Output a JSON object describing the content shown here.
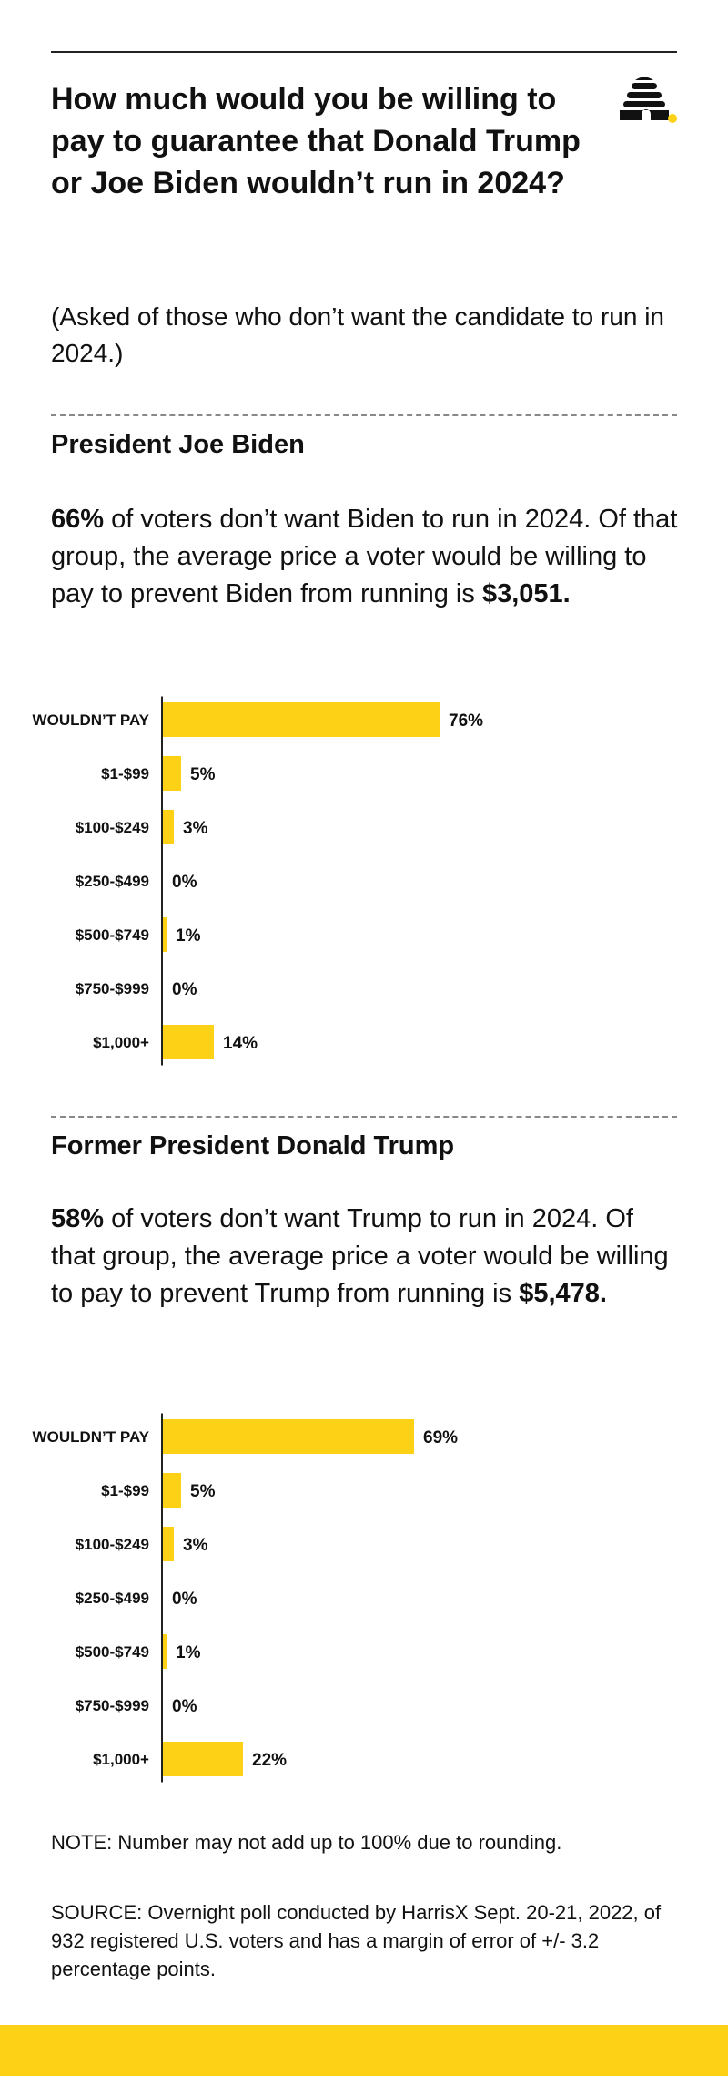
{
  "headline": "How much would you be willing to pay to guarantee that Donald Trump or Joe Biden wouldn’t run in 2024?",
  "subhead": "(Asked of those who don’t want the candidate to run in 2024.)",
  "colors": {
    "bar": "#fcd116",
    "axis": "#222222",
    "text": "#111111",
    "logo_dot": "#fcd116"
  },
  "logo": {
    "icon": "beehive-icon"
  },
  "sections": [
    {
      "title": "President Joe Biden",
      "blurb": {
        "pct": "66%",
        "text_a": " of voters don’t want Biden to run in 2024. Of that group, the average price a voter would be willing to pay to prevent Biden from running is ",
        "price": "$3,051."
      }
    },
    {
      "title": "Former President Donald Trump",
      "blurb": {
        "pct": "58%",
        "text_a": " of voters don’t want Trump to run in 2024. Of that group, the average price a voter would be willing to pay to prevent Trump from running is ",
        "price": "$5,478."
      }
    }
  ],
  "chart_data": [
    {
      "type": "bar",
      "orientation": "horizontal",
      "title": "",
      "categories": [
        "WOULDN’T PAY",
        "$1-$99",
        "$100-$249",
        "$250-$499",
        "$500-$749",
        "$750-$999",
        "$1,000+"
      ],
      "values": [
        76,
        5,
        3,
        0,
        1,
        0,
        14
      ],
      "value_labels": [
        "76%",
        "5%",
        "3%",
        "0%",
        "1%",
        "0%",
        "14%"
      ],
      "unit": "%",
      "xlim": [
        0,
        100
      ],
      "grid": false,
      "legend": "none"
    },
    {
      "type": "bar",
      "orientation": "horizontal",
      "title": "",
      "categories": [
        "WOULDN’T PAY",
        "$1-$99",
        "$100-$249",
        "$250-$499",
        "$500-$749",
        "$750-$999",
        "$1,000+"
      ],
      "values": [
        69,
        5,
        3,
        0,
        1,
        0,
        22
      ],
      "value_labels": [
        "69%",
        "5%",
        "3%",
        "0%",
        "1%",
        "0%",
        "22%"
      ],
      "unit": "%",
      "xlim": [
        0,
        100
      ],
      "grid": false,
      "legend": "none"
    }
  ],
  "note": "NOTE: Number may not add up to 100% due to rounding.",
  "source": "SOURCE: Overnight poll conducted by HarrisX Sept. 20-21, 2022, of 932 registered U.S. voters and has a margin of error of +/- 3.2 percentage points."
}
